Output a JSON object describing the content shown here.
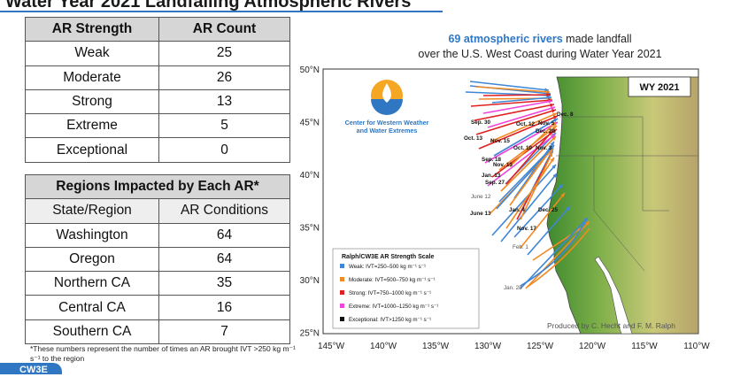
{
  "header": {
    "title": "Water Year 2021 Landfalling Atmospheric Rivers"
  },
  "strength_table": {
    "headers": [
      "AR Strength",
      "AR Count"
    ],
    "rows": [
      {
        "label": "Weak",
        "count": "25"
      },
      {
        "label": "Moderate",
        "count": "26"
      },
      {
        "label": "Strong",
        "count": "13"
      },
      {
        "label": "Extreme",
        "count": "5"
      },
      {
        "label": "Exceptional",
        "count": "0"
      }
    ]
  },
  "regions_table": {
    "title": "Regions Impacted by Each AR*",
    "headers": [
      "State/Region",
      "AR Conditions"
    ],
    "rows": [
      {
        "label": "Washington",
        "count": "64"
      },
      {
        "label": "Oregon",
        "count": "64"
      },
      {
        "label": "Northern CA",
        "count": "35"
      },
      {
        "label": "Central CA",
        "count": "16"
      },
      {
        "label": "Southern CA",
        "count": "7"
      }
    ]
  },
  "footnote": "*These numbers represent the number of times an AR brought IVT >250 kg m⁻¹ s⁻¹ to the region",
  "footer_logo": "CW3E",
  "map": {
    "title_highlight": "69 atmospheric rivers",
    "title_rest": " made landfall",
    "title_line2": "over the U.S. West Coast during Water Year 2021",
    "badge": "WY 2021",
    "org_line1": "Center for Western Weather",
    "org_line2": "and Water Extremes",
    "credit": "Produced by C. Hecht and F. M. Ralph",
    "lat_ticks": [
      "50°N",
      "45°N",
      "40°N",
      "35°N",
      "30°N",
      "25°N"
    ],
    "lon_ticks": [
      "145°W",
      "140°W",
      "135°W",
      "130°W",
      "125°W",
      "120°W",
      "115°W",
      "110°W"
    ],
    "legend": {
      "title": "Ralph/CW3E AR Strength Scale",
      "items": [
        {
          "label": "Weak: IVT=250–500 kg m⁻¹ s⁻¹",
          "color": "#3f86d6"
        },
        {
          "label": "Moderate: IVT=500–750 kg m⁻¹ s⁻¹",
          "color": "#f08a24"
        },
        {
          "label": "Strong: IVT=750–1000 kg m⁻¹ s⁻¹",
          "color": "#e02020"
        },
        {
          "label": "Extreme: IVT=1000–1250 kg m⁻¹ s⁻¹",
          "color": "#ee44dd"
        },
        {
          "label": "Exceptional: IVT>1250 kg m⁻¹ s⁻¹",
          "color": "#111111"
        }
      ]
    },
    "date_labels": [
      {
        "text": "Dec. 8",
        "color": "#111111"
      },
      {
        "text": "Sep. 30",
        "color": "#111111"
      },
      {
        "text": "Oct. 12",
        "color": "#111111"
      },
      {
        "text": "Nov. 5",
        "color": "#111111"
      },
      {
        "text": "Dec. 20",
        "color": "#111111"
      },
      {
        "text": "Oct. 13",
        "color": "#111111"
      },
      {
        "text": "Nov. 15",
        "color": "#111111"
      },
      {
        "text": "Oct. 10",
        "color": "#111111"
      },
      {
        "text": "Nov. 3",
        "color": "#111111"
      },
      {
        "text": "Sep. 18",
        "color": "#111111"
      },
      {
        "text": "Nov. 13",
        "color": "#111111"
      },
      {
        "text": "Jan. 13",
        "color": "#111111"
      },
      {
        "text": "Sep. 27",
        "color": "#111111"
      },
      {
        "text": "June 12",
        "color": "#555555"
      },
      {
        "text": "June 13",
        "color": "#111111"
      },
      {
        "text": "Jan. 4",
        "color": "#111111"
      },
      {
        "text": "Dec. 25",
        "color": "#111111"
      },
      {
        "text": "Nov. 17",
        "color": "#111111"
      },
      {
        "text": "Feb. 1",
        "color": "#555555"
      },
      {
        "text": "Jan. 28",
        "color": "#555555"
      }
    ]
  }
}
